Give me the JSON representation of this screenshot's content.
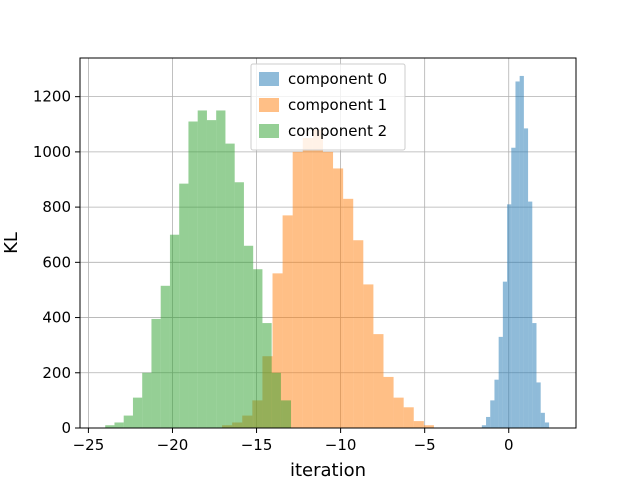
{
  "chart_data": {
    "type": "histogram",
    "xlabel": "iteration",
    "ylabel": "KL",
    "xlim": [
      -25.5,
      4
    ],
    "ylim": [
      0,
      1340
    ],
    "xticks": [
      -25,
      -20,
      -15,
      -10,
      -5,
      0
    ],
    "xtick_labels": [
      "−25",
      "−20",
      "−15",
      "−10",
      "−5",
      "0"
    ],
    "yticks": [
      0,
      200,
      400,
      600,
      800,
      1000,
      1200
    ],
    "grid": true,
    "legend_position": "top-center",
    "series": [
      {
        "name": "component 0",
        "color": "#1f77b4",
        "alpha": 0.5,
        "bin_edges": [
          -1.6,
          -1.35,
          -1.1,
          -0.85,
          -0.6,
          -0.35,
          -0.1,
          0.15,
          0.4,
          0.65,
          0.9,
          1.15,
          1.4,
          1.65,
          1.9,
          2.15,
          2.4
        ],
        "counts": [
          10,
          40,
          100,
          175,
          330,
          530,
          810,
          1015,
          1255,
          1275,
          1085,
          820,
          380,
          165,
          55,
          20
        ]
      },
      {
        "name": "component 1",
        "color": "#ff7f0e",
        "alpha": 0.5,
        "bin_edges": [
          -17.05,
          -16.45,
          -15.85,
          -15.25,
          -14.65,
          -14.05,
          -13.45,
          -12.85,
          -12.25,
          -11.65,
          -11.05,
          -10.45,
          -9.85,
          -9.25,
          -8.65,
          -8.05,
          -7.45,
          -6.85,
          -6.25,
          -5.65,
          -5.05,
          -4.45
        ],
        "counts": [
          10,
          20,
          45,
          100,
          260,
          560,
          770,
          1000,
          1050,
          1080,
          1000,
          940,
          830,
          680,
          520,
          340,
          185,
          110,
          75,
          25,
          10
        ]
      },
      {
        "name": "component 2",
        "color": "#2ca02c",
        "alpha": 0.5,
        "bin_edges": [
          -24.0,
          -23.45,
          -22.9,
          -22.35,
          -21.8,
          -21.25,
          -20.7,
          -20.15,
          -19.6,
          -19.05,
          -18.5,
          -17.95,
          -17.4,
          -16.85,
          -16.3,
          -15.75,
          -15.2,
          -14.65,
          -14.1,
          -13.55,
          -12.95
        ],
        "counts": [
          10,
          20,
          45,
          110,
          200,
          395,
          515,
          700,
          885,
          1110,
          1150,
          1115,
          1150,
          1030,
          890,
          660,
          575,
          380,
          200,
          100
        ]
      }
    ]
  }
}
